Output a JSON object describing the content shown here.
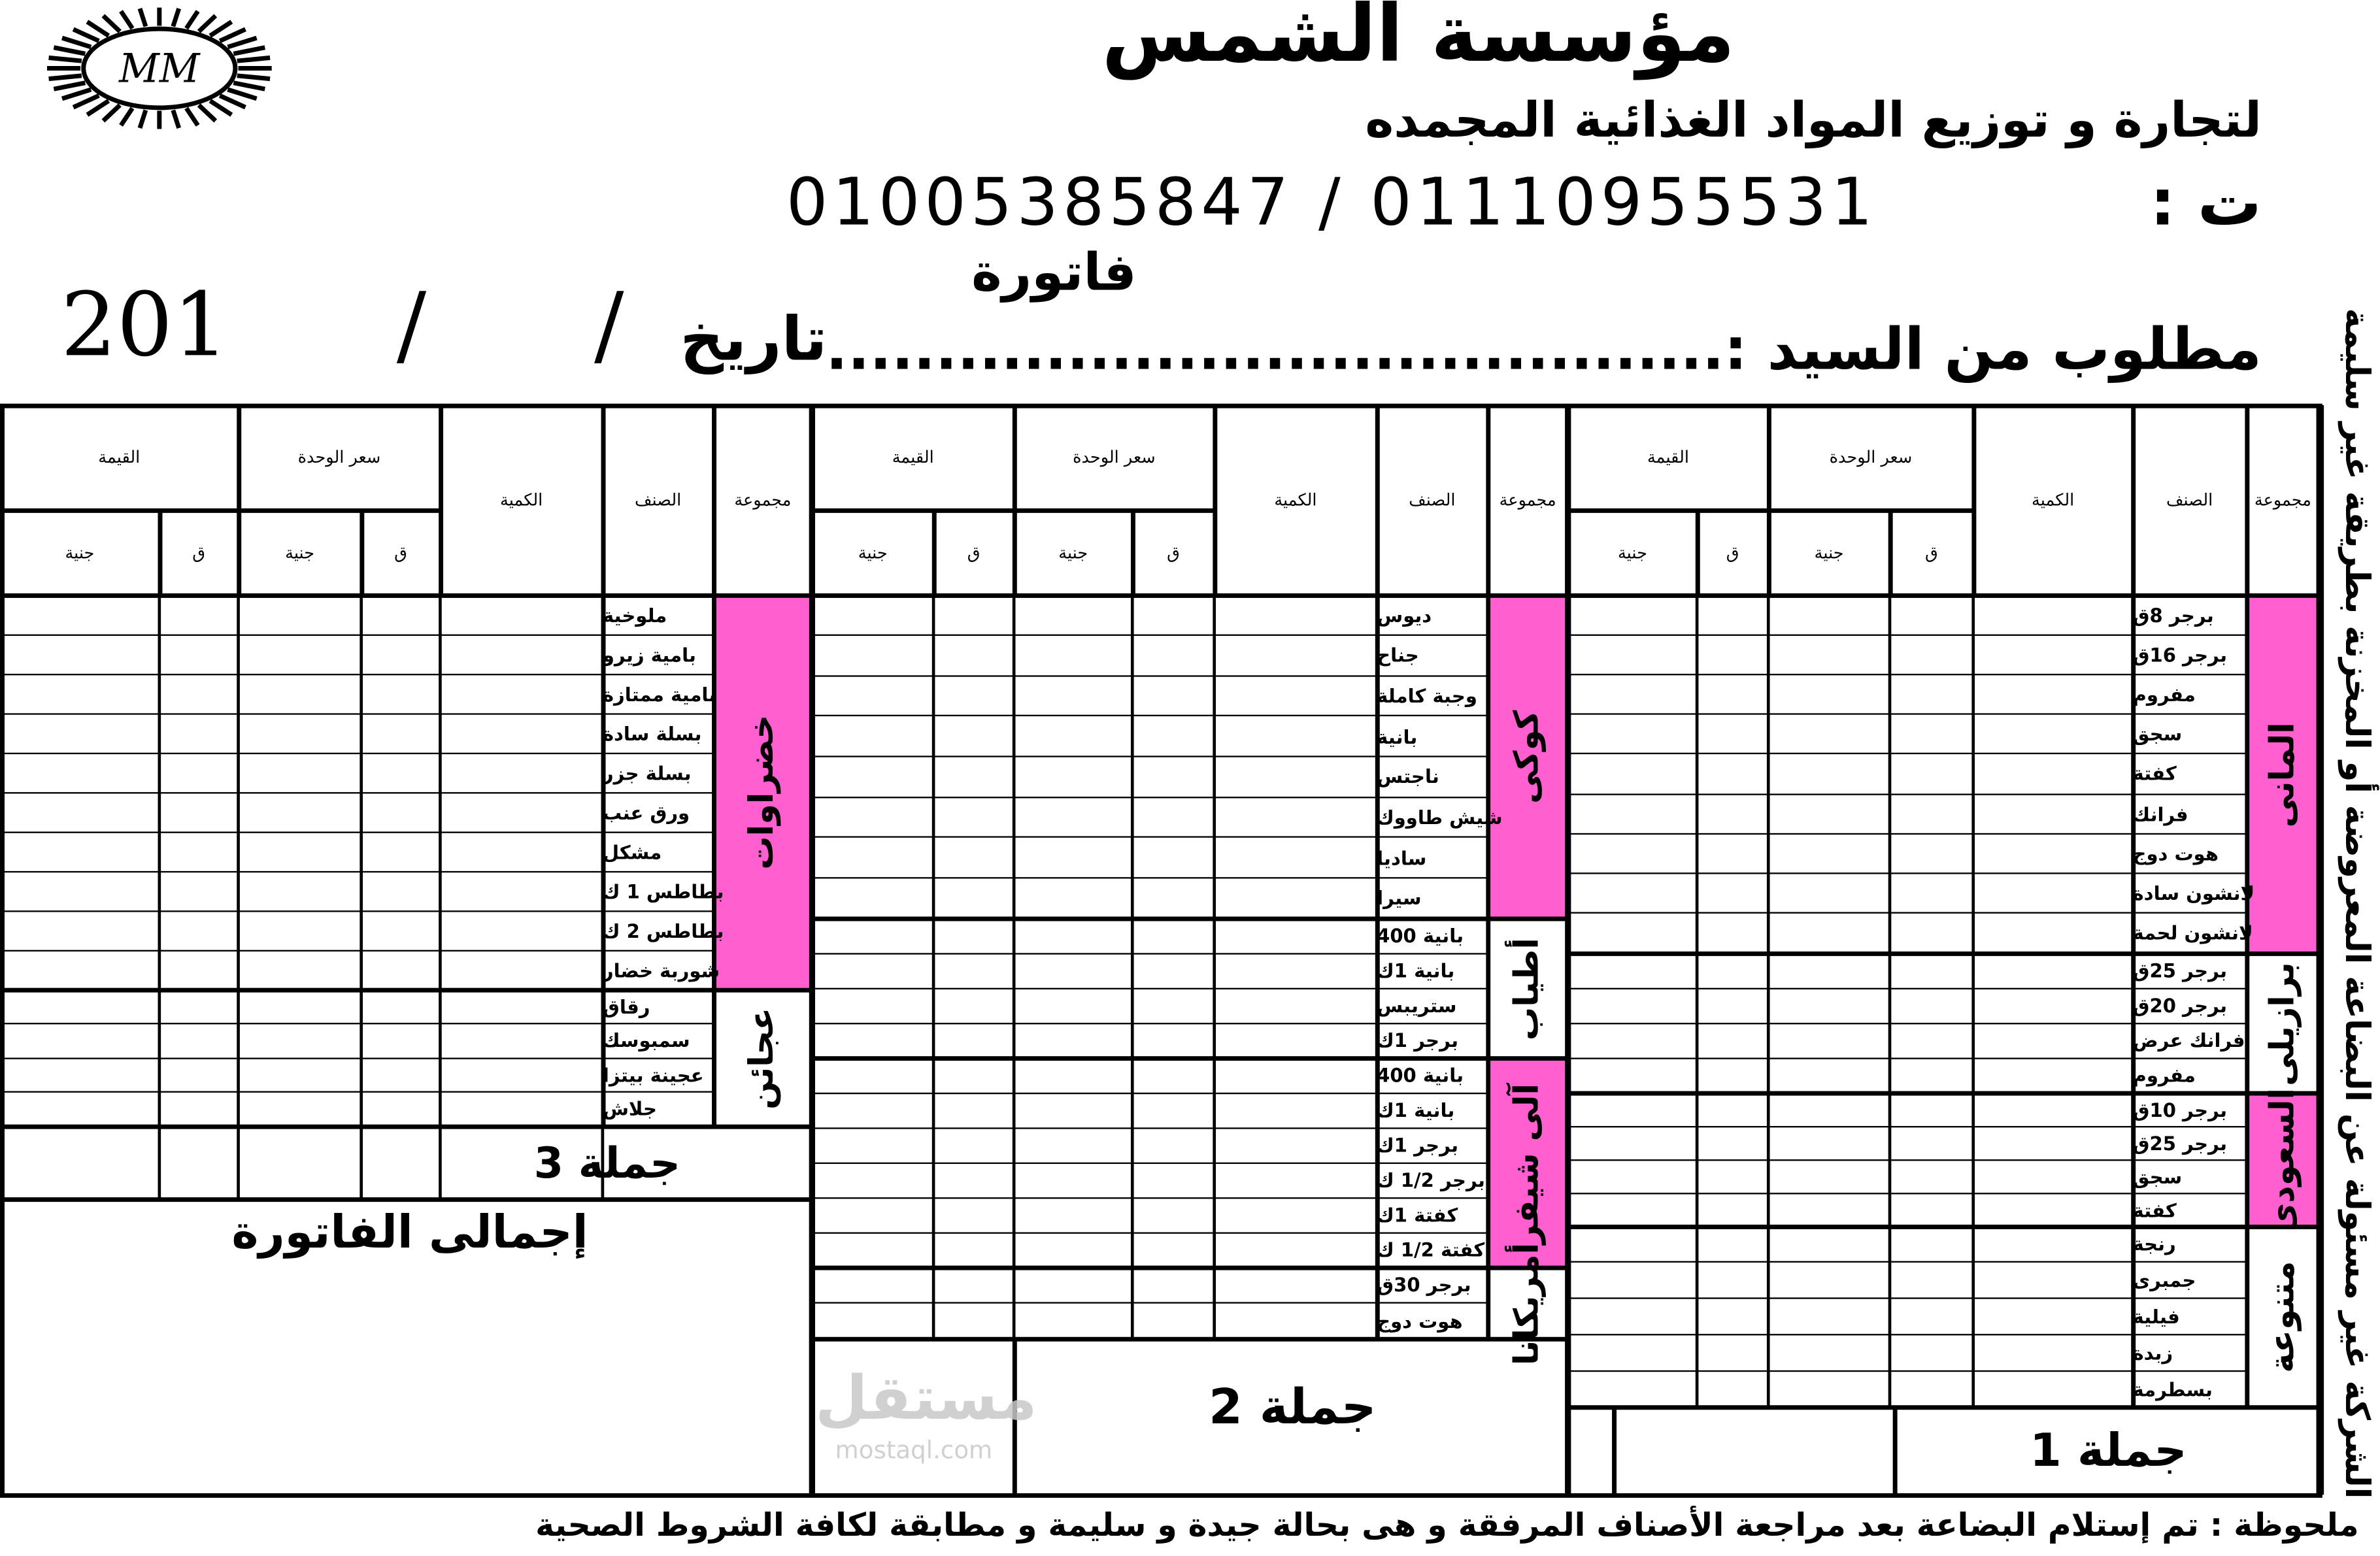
{
  "header": {
    "logo_text": "MM",
    "company_name": "مؤسسة الشمس",
    "tagline": "لتجارة و توزيع المواد الغذائية المجمده",
    "phone_label": "ت :",
    "phones": "01005385847 / 01110955531",
    "invoice_title": "فاتورة",
    "customer_label": "مطلوب من السيد :.........................................",
    "date_label": "تاريخ",
    "date_value": "201      /      /"
  },
  "columns": {
    "category": "مجموعة",
    "item": "الصنف",
    "quantity": "الكمية",
    "unit_price": "سعر الوحدة",
    "value": "القيمة",
    "piasters": "ق",
    "pounds": "جنية"
  },
  "panels": [
    {
      "total_label": "جملة 1",
      "groups": [
        {
          "label": "المانى",
          "highlight": true,
          "items": [
            "برجر 8ق",
            "برجر 16ق",
            "مفروم",
            "سجق",
            "كفتة",
            "فرانك",
            "هوت دوج",
            "لانشون سادة",
            "لانشون لحمة"
          ]
        },
        {
          "label": "برازيلى",
          "highlight": false,
          "items": [
            "برجر 25ق",
            "برجر 20ق",
            "فرانك عرض",
            "مفروم"
          ]
        },
        {
          "label": "السعودى",
          "highlight": true,
          "items": [
            "برجر 10ق",
            "برجر 25ق",
            "سجق",
            "كفتة"
          ]
        },
        {
          "label": "متنوعة",
          "highlight": false,
          "items": [
            "رنجة",
            "جمبرى",
            "فيلية",
            "زبدة",
            "بسطرمة"
          ]
        }
      ]
    },
    {
      "total_label": "جملة 2",
      "groups": [
        {
          "label": "كوكى",
          "highlight": true,
          "items": [
            "ديوس",
            "جناح",
            "وجبة كاملة",
            "بانية",
            "ناجتس",
            "شيش طاووك",
            "ساديا",
            "سيرا"
          ]
        },
        {
          "label": "أطياب",
          "highlight": false,
          "items": [
            "بانية 400",
            "بانية 1ك",
            "ستريبس",
            "برجر 1ك"
          ]
        },
        {
          "label": "آلى شيفر",
          "highlight": true,
          "items": [
            "بانية 400",
            "بانية 1ك",
            "برجر 1ك",
            "برجر 1/2 ك",
            "كفتة 1ك",
            "كفتة 1/2 ك"
          ]
        },
        {
          "label": "أمريكانا",
          "highlight": false,
          "items": [
            "برجر 30ق",
            "هوت دوج"
          ]
        }
      ]
    },
    {
      "total_label": "جملة 3",
      "groups": [
        {
          "label": "خضراوات",
          "highlight": true,
          "items": [
            "ملوخية",
            "بامية زيرو",
            "بامية ممتازة",
            "بسلة سادة",
            "بسلة جزر",
            "ورق عنب",
            "مشكل",
            "بطاطس 1 ك",
            "بطاطس 2 ك",
            "شوربة خضار"
          ]
        },
        {
          "label": "عجائن",
          "highlight": false,
          "items": [
            "رقاق",
            "سمبوسك",
            "عجينة بيتزا",
            "جلاش"
          ]
        }
      ]
    }
  ],
  "grand_total_label": "إجمالى الفاتورة",
  "side_note": "الشركة غير مسئولة عن البضاعة المعروضة أو المخزنة بطريقة غير سليمة",
  "footer_note": "ملحوظة : تم إستلام البضاعة بعد مراجعة الأصناف المرفقة و هى بحالة جيدة و سليمة و مطابقة لكافة الشروط الصحية",
  "watermark": {
    "arabic": "مستقل",
    "latin": "mostaql.com"
  },
  "colors": {
    "highlight": "#ff5fcf",
    "ink": "#000000"
  }
}
